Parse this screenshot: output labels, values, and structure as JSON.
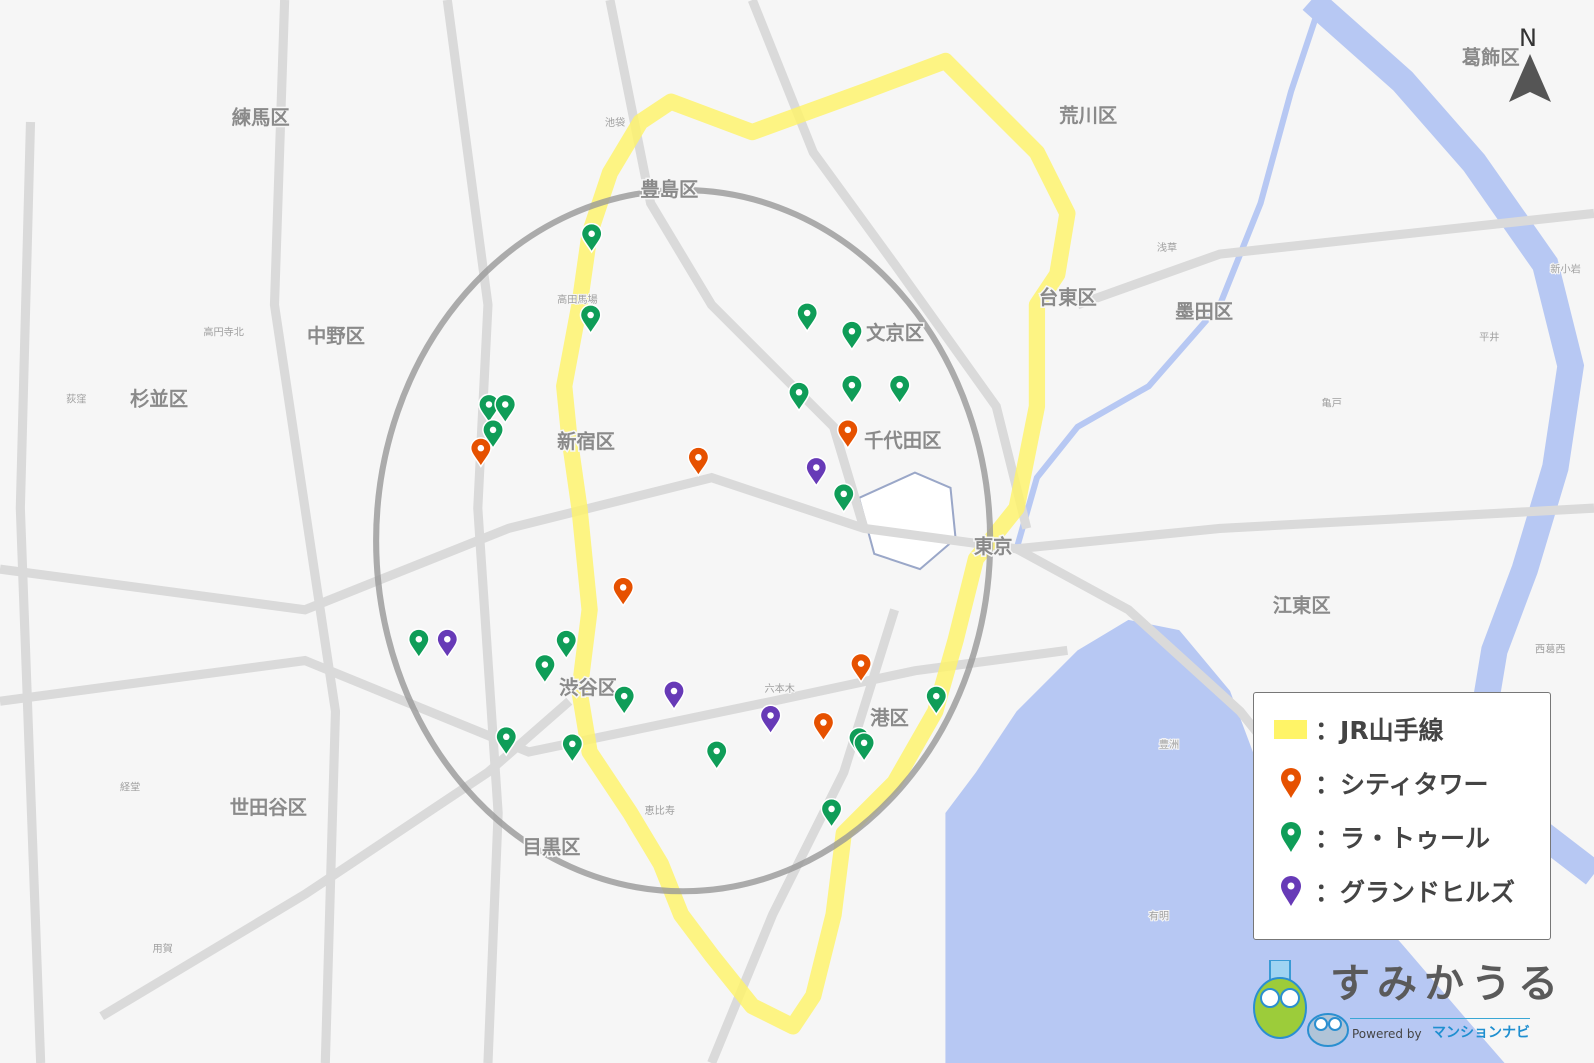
{
  "map": {
    "wards": [
      "練馬区",
      "中野区",
      "杉並区",
      "豊島区",
      "新宿区",
      "文京区",
      "千代田区",
      "荒川区",
      "台東区",
      "墨田区",
      "葛飾区",
      "江東区",
      "東京",
      "渋谷区",
      "港区",
      "世田谷区",
      "目黒区"
    ],
    "places": [
      "高田馬場",
      "高円寺北",
      "荻窪",
      "六本木",
      "恵比寿",
      "浅草",
      "亀戸",
      "豊洲",
      "有明",
      "経堂",
      "用賀",
      "池袋",
      "新小岩",
      "西葛西",
      "平井"
    ],
    "north_label": "N"
  },
  "legend": {
    "items": [
      {
        "label": "JR山手線",
        "type": "line",
        "color": "#fff467"
      },
      {
        "label": "シティタワー",
        "type": "pin",
        "color": "#e65100"
      },
      {
        "label": "ラ・トゥール",
        "type": "pin",
        "color": "#0f9d58"
      },
      {
        "label": "グランドヒルズ",
        "type": "pin",
        "color": "#673ab7"
      }
    ]
  },
  "logo": {
    "name": "すみかうる",
    "powered_by": "Powered by",
    "brand": "マンションナビ"
  }
}
